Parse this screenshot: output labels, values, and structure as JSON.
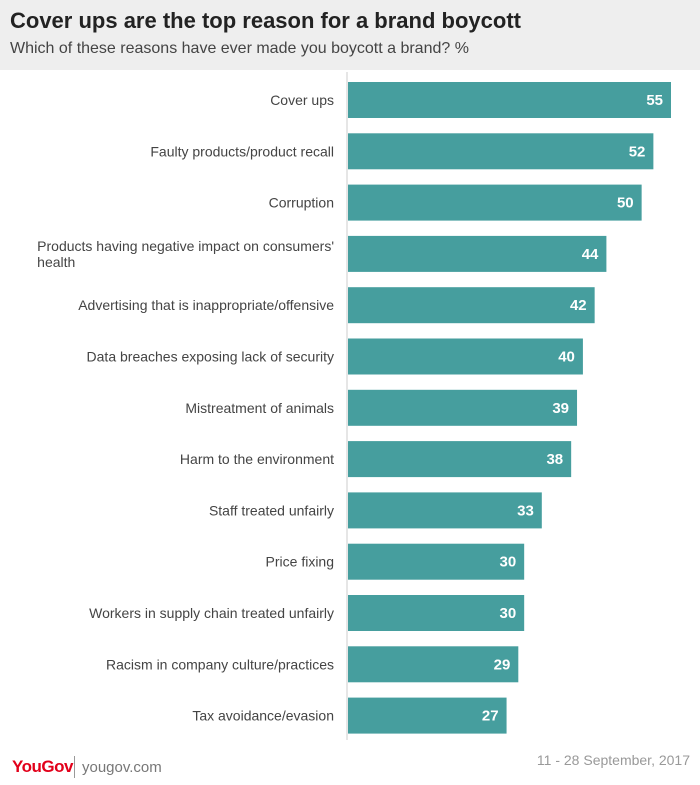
{
  "header": {
    "title": "Cover ups are the top reason for a brand boycott",
    "subtitle": "Which of these reasons have ever made you boycott a brand? %"
  },
  "footer": {
    "logo": "YouGov",
    "site": "yougov.com",
    "date": "11 - 28 September, 2017"
  },
  "colors": {
    "bar": "#469e9e",
    "axis": "#cccccc"
  },
  "chart_data": {
    "type": "bar",
    "orientation": "horizontal",
    "title": "Cover ups are the top reason for a brand boycott",
    "subtitle": "Which of these reasons have ever made you boycott a brand? %",
    "categories": [
      "Cover ups",
      "Faulty products/product recall",
      "Corruption",
      "Products having negative impact on consumers' health",
      "Advertising that is inappropriate/offensive",
      "Data breaches exposing lack of security",
      "Mistreatment of animals",
      "Harm to the environment",
      "Staff treated unfairly",
      "Price fixing",
      "Workers in supply chain treated unfairly",
      "Racism in company culture/practices",
      "Tax avoidance/evasion"
    ],
    "values": [
      55,
      52,
      50,
      44,
      42,
      40,
      39,
      38,
      33,
      30,
      30,
      29,
      27
    ],
    "xlim": [
      0,
      55
    ],
    "grid": false,
    "legend": "none"
  }
}
